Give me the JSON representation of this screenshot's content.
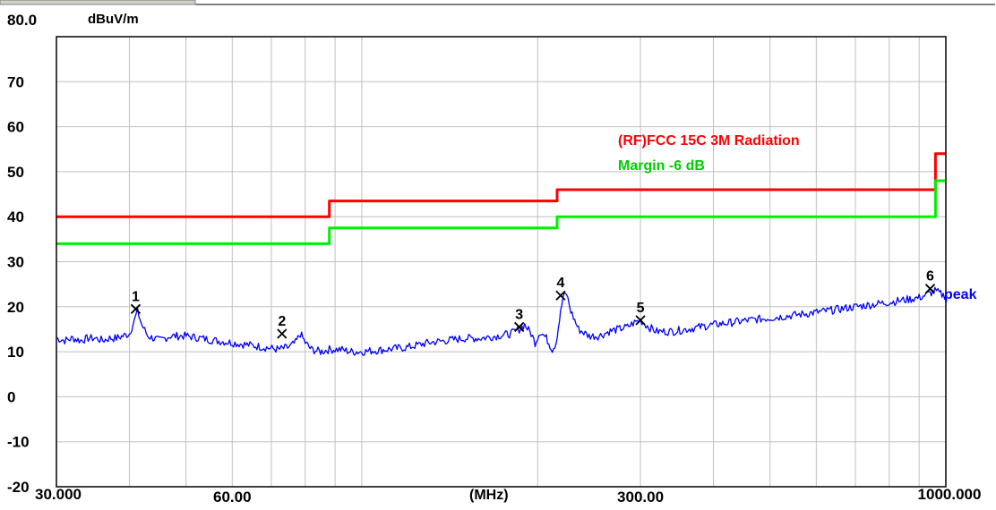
{
  "chart_data": {
    "type": "line",
    "title": "",
    "y_unit": "dBuV/m",
    "x_unit": "(MHz)",
    "x_scale": "log",
    "xlim": [
      30,
      1000
    ],
    "ylim": [
      -20,
      80
    ],
    "y_top_label": "80.0",
    "y_ticks": [
      "70",
      "60",
      "50",
      "40",
      "30",
      "20",
      "10",
      "0",
      "-10",
      "-20"
    ],
    "x_tick_labels": [
      {
        "value": 30,
        "label": "30.000"
      },
      {
        "value": 60,
        "label": "60.00"
      },
      {
        "value": 300,
        "label": "300.00"
      },
      {
        "value": 1000,
        "label": "1000.000"
      }
    ],
    "grid": true,
    "colors": {
      "limit": "#ff0000",
      "margin": "#00ee00",
      "trace": "#0000ff",
      "grid": "#c0c0c0",
      "frame": "#000000"
    },
    "series": [
      {
        "name": "(RF)FCC 15C 3M Radiation",
        "color": "#ff0000",
        "x": [
          30,
          88,
          88,
          216,
          216,
          960,
          960,
          1000
        ],
        "y": [
          40,
          40,
          43.5,
          43.5,
          46,
          46,
          54,
          54
        ]
      },
      {
        "name": "Margin -6 dB",
        "color": "#00ee00",
        "x": [
          30,
          88,
          88,
          216,
          216,
          960,
          960,
          1000
        ],
        "y": [
          34,
          34,
          37.5,
          37.5,
          40,
          40,
          48,
          48
        ]
      },
      {
        "name": "peak",
        "color": "#0000ff",
        "x": [
          30,
          31,
          32,
          33,
          34,
          35,
          36,
          37,
          38,
          39,
          40,
          40.8,
          41.3,
          42,
          43,
          45,
          47,
          50,
          53,
          56,
          60,
          64,
          68,
          72,
          75,
          77,
          78.5,
          80,
          82,
          85,
          88,
          92,
          96,
          100,
          110,
          120,
          130,
          140,
          150,
          160,
          170,
          180,
          186,
          190,
          195,
          198,
          202,
          207,
          212,
          215,
          218,
          221,
          224,
          228,
          235,
          245,
          255,
          265,
          275,
          285,
          293,
          300,
          310,
          320,
          340,
          360,
          380,
          400,
          430,
          460,
          500,
          540,
          580,
          620,
          660,
          700,
          750,
          800,
          850,
          900,
          940,
          958,
          975,
          990,
          1000
        ],
        "y": [
          13,
          12.5,
          13,
          12.5,
          13,
          13,
          12.5,
          13,
          13,
          13.5,
          14,
          17,
          19,
          16,
          13.5,
          12.5,
          13.5,
          13.5,
          13,
          12.5,
          12,
          11.5,
          11,
          10.5,
          11,
          12,
          14,
          12,
          10.5,
          10,
          10.5,
          10.5,
          10,
          10,
          10.5,
          11,
          12,
          12.5,
          13,
          13,
          13.5,
          14,
          15,
          16,
          14,
          12,
          14.5,
          13,
          10.5,
          12,
          17,
          22,
          23,
          19,
          15,
          13.5,
          13.5,
          14.5,
          15,
          15.5,
          16.5,
          17,
          15.5,
          14.5,
          14.5,
          15,
          15.5,
          16,
          16.5,
          17,
          17.5,
          18,
          18.5,
          19,
          19.5,
          20,
          20.5,
          21,
          21.5,
          22,
          23,
          23.5,
          23,
          22.5,
          22.5
        ]
      }
    ],
    "markers": [
      {
        "label": "1",
        "x": 41,
        "y": 19.5
      },
      {
        "label": "2",
        "x": 73,
        "y": 14
      },
      {
        "label": "3",
        "x": 186,
        "y": 15.5
      },
      {
        "label": "4",
        "x": 219,
        "y": 22.5
      },
      {
        "label": "5",
        "x": 300,
        "y": 17
      },
      {
        "label": "6",
        "x": 940,
        "y": 24
      }
    ],
    "legend": [
      {
        "text": "(RF)FCC 15C 3M Radiation",
        "color": "#ff0000"
      },
      {
        "text": "Margin -6 dB",
        "color": "#00cc00"
      }
    ],
    "trace_label": "peak"
  }
}
